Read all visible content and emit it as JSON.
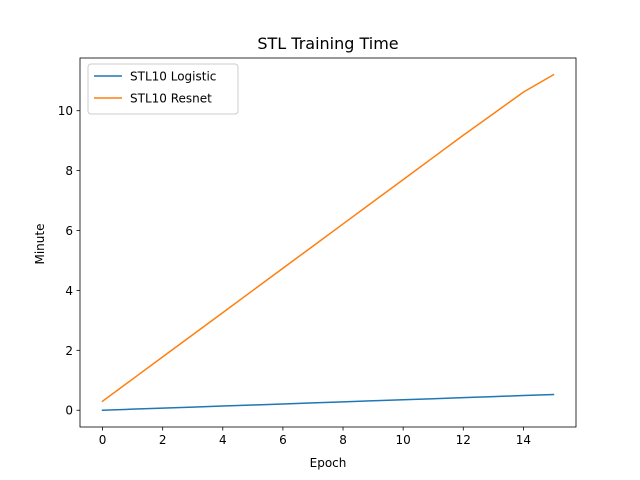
{
  "chart_data": {
    "type": "line",
    "title": "STL Training Time",
    "xlabel": "Epoch",
    "ylabel": "Minute",
    "xlim": [
      -0.75,
      15.75
    ],
    "ylim": [
      -0.56,
      11.76
    ],
    "xticks": [
      0,
      2,
      4,
      6,
      8,
      10,
      12,
      14
    ],
    "yticks": [
      0,
      2,
      4,
      6,
      8,
      10
    ],
    "grid": false,
    "legend_position": "top-left",
    "x": [
      0,
      1,
      2,
      3,
      4,
      5,
      6,
      7,
      8,
      9,
      10,
      11,
      12,
      13,
      14,
      15
    ],
    "series": [
      {
        "name": "STL10 Logistic",
        "color": "#1f77b4",
        "values": [
          0.0,
          0.035,
          0.07,
          0.105,
          0.14,
          0.175,
          0.21,
          0.245,
          0.28,
          0.315,
          0.35,
          0.385,
          0.42,
          0.455,
          0.49,
          0.525
        ]
      },
      {
        "name": "STL10 Resnet",
        "color": "#ff7f0e",
        "values": [
          0.3,
          1.04,
          1.78,
          2.52,
          3.26,
          4.0,
          4.74,
          5.48,
          6.22,
          6.96,
          7.7,
          8.44,
          9.18,
          9.9,
          10.62,
          11.2
        ]
      }
    ]
  }
}
